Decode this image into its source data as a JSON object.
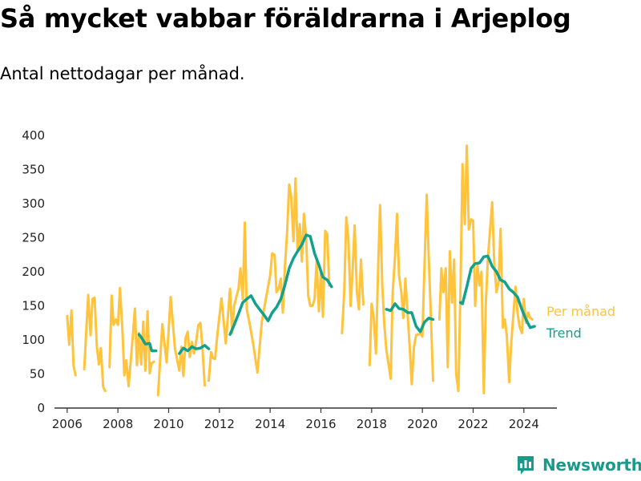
{
  "title": "Så mycket vabbar föräldrarna i Arjeplog",
  "subtitle": "Antal nettodagar per månad.",
  "brand": {
    "name": "Newsworthy",
    "icon": "bar-chart-logo-icon"
  },
  "colors": {
    "monthly": "#ffc33c",
    "trend": "#13a08c",
    "axis": "#333333",
    "brand": "#1b9a8a"
  },
  "chart_data": {
    "type": "line",
    "title": "Så mycket vabbar föräldrarna i Arjeplog",
    "subtitle": "Antal nettodagar per månad.",
    "xlabel": "",
    "ylabel": "",
    "xlim": [
      2005.5,
      2025.3
    ],
    "ylim": [
      0,
      400
    ],
    "x_ticks": [
      2006,
      2008,
      2010,
      2012,
      2014,
      2016,
      2018,
      2020,
      2022,
      2024
    ],
    "y_ticks": [
      0,
      50,
      100,
      150,
      200,
      250,
      300,
      350,
      400
    ],
    "grid": false,
    "legend": "right, next to line ends",
    "series": [
      {
        "name": "Per månad",
        "color": "#ffc33c",
        "points": [
          [
            2006.0,
            135
          ],
          [
            2006.08,
            93
          ],
          [
            2006.17,
            143
          ],
          [
            2006.25,
            62
          ],
          [
            2006.33,
            48
          ],
          null,
          [
            2006.67,
            57
          ],
          [
            2006.83,
            166
          ],
          [
            2006.92,
            107
          ],
          [
            2007.0,
            160
          ],
          [
            2007.08,
            162
          ],
          [
            2007.17,
            90
          ],
          [
            2007.25,
            64
          ],
          [
            2007.33,
            88
          ],
          [
            2007.42,
            31
          ],
          [
            2007.5,
            25
          ],
          null,
          [
            2007.67,
            60
          ],
          [
            2007.75,
            165
          ],
          [
            2007.83,
            122
          ],
          [
            2007.92,
            130
          ],
          [
            2008.0,
            122
          ],
          [
            2008.08,
            176
          ],
          [
            2008.17,
            120
          ],
          [
            2008.25,
            48
          ],
          [
            2008.33,
            70
          ],
          [
            2008.42,
            32
          ],
          [
            2008.58,
            102
          ],
          [
            2008.67,
            146
          ],
          [
            2008.75,
            63
          ],
          [
            2008.83,
            110
          ],
          [
            2008.92,
            64
          ],
          [
            2009.0,
            127
          ],
          [
            2009.08,
            55
          ],
          [
            2009.17,
            142
          ],
          [
            2009.25,
            51
          ],
          [
            2009.33,
            66
          ],
          [
            2009.42,
            68
          ],
          null,
          [
            2009.58,
            19
          ],
          [
            2009.75,
            123
          ],
          [
            2009.92,
            67
          ],
          [
            2010.08,
            163
          ],
          [
            2010.25,
            87
          ],
          [
            2010.42,
            55
          ],
          [
            2010.5,
            90
          ],
          [
            2010.58,
            47
          ],
          [
            2010.67,
            103
          ],
          [
            2010.75,
            112
          ],
          [
            2010.83,
            75
          ],
          [
            2010.92,
            97
          ],
          [
            2011.0,
            80
          ],
          [
            2011.08,
            97
          ],
          [
            2011.17,
            122
          ],
          [
            2011.25,
            125
          ],
          [
            2011.33,
            90
          ],
          [
            2011.42,
            33
          ],
          null,
          [
            2011.58,
            40
          ],
          [
            2011.67,
            82
          ],
          [
            2011.75,
            73
          ],
          [
            2011.83,
            72
          ],
          [
            2011.92,
            108
          ],
          [
            2012.08,
            161
          ],
          [
            2012.25,
            95
          ],
          [
            2012.42,
            175
          ],
          [
            2012.5,
            110
          ],
          [
            2012.58,
            150
          ],
          [
            2012.75,
            175
          ],
          [
            2012.83,
            205
          ],
          [
            2012.92,
            160
          ],
          [
            2013.0,
            272
          ],
          [
            2013.08,
            145
          ],
          [
            2013.17,
            128
          ],
          [
            2013.33,
            95
          ],
          [
            2013.5,
            52
          ],
          [
            2013.67,
            126
          ],
          [
            2013.83,
            160
          ],
          [
            2014.0,
            195
          ],
          [
            2014.08,
            227
          ],
          [
            2014.17,
            225
          ],
          [
            2014.25,
            170
          ],
          [
            2014.33,
            175
          ],
          [
            2014.42,
            190
          ],
          [
            2014.5,
            140
          ],
          [
            2014.58,
            205
          ],
          [
            2014.67,
            260
          ],
          [
            2014.75,
            328
          ],
          [
            2014.83,
            310
          ],
          [
            2014.92,
            245
          ],
          [
            2015.0,
            337
          ],
          [
            2015.08,
            230
          ],
          [
            2015.17,
            270
          ],
          [
            2015.25,
            215
          ],
          [
            2015.33,
            285
          ],
          [
            2015.42,
            250
          ],
          [
            2015.5,
            165
          ],
          [
            2015.58,
            150
          ],
          [
            2015.67,
            150
          ],
          [
            2015.75,
            160
          ],
          [
            2015.83,
            215
          ],
          [
            2015.92,
            142
          ],
          [
            2016.0,
            200
          ],
          [
            2016.08,
            134
          ],
          [
            2016.17,
            260
          ],
          [
            2016.25,
            255
          ],
          [
            2016.33,
            180
          ],
          null,
          [
            2016.83,
            110
          ],
          [
            2016.92,
            170
          ],
          [
            2017.0,
            280
          ],
          [
            2017.08,
            250
          ],
          [
            2017.17,
            150
          ],
          [
            2017.25,
            202
          ],
          [
            2017.33,
            268
          ],
          [
            2017.42,
            170
          ],
          [
            2017.5,
            145
          ],
          [
            2017.58,
            218
          ],
          [
            2017.67,
            152
          ],
          null,
          [
            2017.92,
            63
          ],
          [
            2018.0,
            153
          ],
          [
            2018.08,
            133
          ],
          [
            2018.17,
            80
          ],
          [
            2018.25,
            200
          ],
          [
            2018.33,
            298
          ],
          [
            2018.42,
            180
          ],
          [
            2018.5,
            122
          ],
          [
            2018.58,
            85
          ],
          [
            2018.67,
            63
          ],
          [
            2018.75,
            43
          ],
          [
            2018.83,
            170
          ],
          [
            2018.92,
            222
          ],
          [
            2019.0,
            285
          ],
          [
            2019.08,
            195
          ],
          [
            2019.17,
            170
          ],
          [
            2019.25,
            132
          ],
          [
            2019.33,
            190
          ],
          [
            2019.5,
            90
          ],
          [
            2019.58,
            35
          ],
          [
            2019.67,
            90
          ],
          [
            2019.75,
            107
          ],
          [
            2019.83,
            108
          ],
          [
            2019.92,
            109
          ],
          [
            2020.0,
            105
          ],
          [
            2020.08,
            205
          ],
          [
            2020.17,
            313
          ],
          [
            2020.25,
            220
          ],
          [
            2020.33,
            140
          ],
          [
            2020.42,
            40
          ],
          null,
          [
            2020.67,
            130
          ],
          [
            2020.75,
            205
          ],
          [
            2020.83,
            170
          ],
          [
            2020.92,
            205
          ],
          [
            2021.0,
            60
          ],
          [
            2021.08,
            230
          ],
          [
            2021.17,
            155
          ],
          [
            2021.25,
            218
          ],
          [
            2021.33,
            50
          ],
          [
            2021.42,
            25
          ],
          [
            2021.5,
            175
          ],
          [
            2021.58,
            358
          ],
          [
            2021.67,
            270
          ],
          [
            2021.75,
            385
          ],
          [
            2021.83,
            262
          ],
          [
            2021.92,
            277
          ],
          [
            2022.0,
            275
          ],
          [
            2022.08,
            150
          ],
          [
            2022.17,
            210
          ],
          [
            2022.25,
            180
          ],
          [
            2022.33,
            200
          ],
          [
            2022.42,
            22
          ],
          [
            2022.5,
            152
          ],
          [
            2022.58,
            220
          ],
          [
            2022.75,
            302
          ],
          [
            2022.83,
            215
          ],
          [
            2022.92,
            170
          ],
          [
            2023.0,
            185
          ],
          [
            2023.08,
            263
          ],
          [
            2023.17,
            118
          ],
          [
            2023.25,
            130
          ],
          [
            2023.33,
            105
          ],
          [
            2023.42,
            38
          ],
          [
            2023.5,
            95
          ],
          [
            2023.67,
            178
          ],
          [
            2023.75,
            140
          ],
          [
            2023.83,
            120
          ],
          [
            2023.92,
            110
          ],
          [
            2024.0,
            160
          ],
          [
            2024.08,
            125
          ],
          [
            2024.17,
            140
          ],
          [
            2024.25,
            132
          ],
          [
            2024.33,
            130
          ]
        ]
      },
      {
        "name": "Trend",
        "color": "#13a08c",
        "points": [
          [
            2008.83,
            108
          ],
          [
            2008.92,
            104
          ],
          [
            2009.08,
            94
          ],
          [
            2009.25,
            95
          ],
          [
            2009.33,
            84
          ],
          [
            2009.5,
            84
          ],
          null,
          [
            2010.42,
            80
          ],
          [
            2010.58,
            88
          ],
          [
            2010.75,
            84
          ],
          [
            2010.92,
            90
          ],
          [
            2011.08,
            87
          ],
          [
            2011.25,
            88
          ],
          [
            2011.42,
            92
          ],
          [
            2011.58,
            87
          ],
          null,
          [
            2012.42,
            108
          ],
          [
            2012.58,
            122
          ],
          [
            2012.75,
            138
          ],
          [
            2012.92,
            155
          ],
          [
            2013.08,
            160
          ],
          [
            2013.25,
            165
          ],
          [
            2013.42,
            153
          ],
          [
            2013.58,
            145
          ],
          [
            2013.75,
            137
          ],
          [
            2013.92,
            128
          ],
          [
            2014.08,
            140
          ],
          [
            2014.25,
            148
          ],
          [
            2014.42,
            160
          ],
          [
            2014.58,
            180
          ],
          [
            2014.75,
            205
          ],
          [
            2014.92,
            220
          ],
          [
            2015.08,
            230
          ],
          [
            2015.25,
            240
          ],
          [
            2015.42,
            254
          ],
          [
            2015.58,
            252
          ],
          [
            2015.75,
            227
          ],
          [
            2015.92,
            210
          ],
          [
            2016.08,
            192
          ],
          [
            2016.25,
            188
          ],
          [
            2016.42,
            178
          ],
          null,
          [
            2018.58,
            145
          ],
          [
            2018.75,
            143
          ],
          [
            2018.92,
            153
          ],
          [
            2019.08,
            146
          ],
          [
            2019.25,
            145
          ],
          [
            2019.42,
            140
          ],
          [
            2019.58,
            140
          ],
          [
            2019.75,
            120
          ],
          [
            2019.92,
            112
          ],
          [
            2020.08,
            126
          ],
          [
            2020.25,
            132
          ],
          [
            2020.42,
            130
          ],
          null,
          [
            2021.5,
            155
          ],
          [
            2021.58,
            153
          ],
          [
            2021.75,
            178
          ],
          [
            2021.92,
            205
          ],
          [
            2022.08,
            212
          ],
          [
            2022.25,
            213
          ],
          [
            2022.42,
            222
          ],
          [
            2022.58,
            223
          ],
          [
            2022.75,
            208
          ],
          [
            2022.92,
            200
          ],
          [
            2023.08,
            188
          ],
          [
            2023.25,
            185
          ],
          [
            2023.42,
            175
          ],
          [
            2023.58,
            170
          ],
          [
            2023.75,
            163
          ],
          [
            2023.92,
            145
          ],
          [
            2024.08,
            130
          ],
          [
            2024.25,
            118
          ],
          [
            2024.42,
            120
          ]
        ]
      }
    ]
  }
}
